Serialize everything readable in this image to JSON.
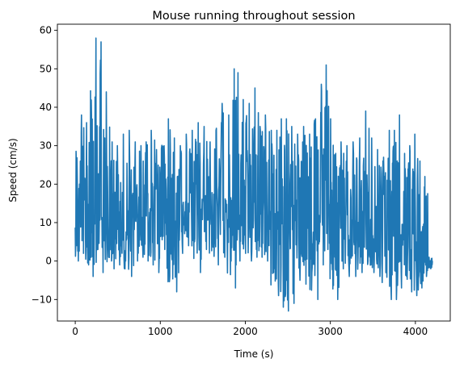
{
  "chart_data": {
    "type": "line",
    "title": "Mouse running throughout session",
    "xlabel": "Time (s)",
    "ylabel": "Speed (cm/s)",
    "xlim": [
      -210,
      4410
    ],
    "ylim": [
      -15.6,
      61.6
    ],
    "xticks": [
      0,
      1000,
      2000,
      3000,
      4000
    ],
    "yticks": [
      -10,
      0,
      10,
      20,
      30,
      40,
      50,
      60
    ],
    "grid": false,
    "series": [
      {
        "color": "#1f77b4",
        "x": [
          0,
          60,
          120,
          180,
          230,
          290,
          350,
          420,
          480,
          550,
          620,
          690,
          760,
          820,
          880,
          940,
          1010,
          1080,
          1150,
          1220,
          1290,
          1360,
          1430,
          1500,
          1570,
          1640,
          1710,
          1790,
          1860,
          1900,
          1960,
          2030,
          2100,
          2160,
          2220,
          2290,
          2360,
          2410,
          2470,
          2530,
          2600,
          2670,
          2740,
          2810,
          2880,
          2940,
          2990,
          3050,
          3110,
          3180,
          3250,
          3330,
          3400,
          3470,
          3540,
          3610,
          3680,
          3740,
          3800,
          3860,
          3920,
          3980,
          4040,
          4100,
          4150,
          4200
        ],
        "max": [
          25,
          38,
          36,
          38,
          58,
          57,
          44,
          31,
          30,
          33,
          34,
          31,
          30,
          31,
          34,
          29,
          29,
          37,
          32,
          30,
          33,
          34,
          36,
          35,
          31,
          34,
          41,
          38,
          50,
          49,
          42,
          41,
          45,
          35,
          38,
          34,
          34,
          37,
          37,
          35,
          33,
          35,
          33,
          37,
          46,
          51,
          37,
          28,
          31,
          30,
          31,
          32,
          39,
          32,
          29,
          27,
          34,
          34,
          38,
          28,
          30,
          33,
          26,
          22,
          1,
          1
        ],
        "min": [
          0,
          2,
          -1,
          -4,
          3,
          -3,
          1,
          -2,
          -1,
          0,
          -4,
          0,
          1,
          0,
          -1,
          -3,
          3,
          4,
          -8,
          2,
          4,
          5,
          -3,
          3,
          5,
          -1,
          1,
          0,
          -7,
          0,
          2,
          0,
          1,
          1,
          0,
          -3,
          -9,
          -12,
          -13,
          -11,
          -5,
          -6,
          -3,
          -10,
          -1,
          3,
          2,
          -10,
          -2,
          -4,
          -4,
          -3,
          0,
          -3,
          -4,
          -3,
          -10,
          -10,
          -7,
          -4,
          -8,
          -9,
          -7,
          -4,
          -2,
          0
        ],
        "typical": [
          12,
          16,
          15,
          14,
          18,
          16,
          13,
          12,
          12,
          13,
          12,
          13,
          13,
          14,
          13,
          12,
          14,
          16,
          13,
          13,
          15,
          15,
          14,
          15,
          15,
          16,
          17,
          18,
          18,
          17,
          17,
          16,
          16,
          14,
          14,
          13,
          12,
          10,
          10,
          12,
          12,
          13,
          13,
          12,
          16,
          18,
          15,
          9,
          10,
          9,
          8,
          9,
          10,
          9,
          8,
          7,
          7,
          8,
          7,
          5,
          5,
          5,
          3,
          2,
          0,
          0
        ]
      }
    ]
  }
}
